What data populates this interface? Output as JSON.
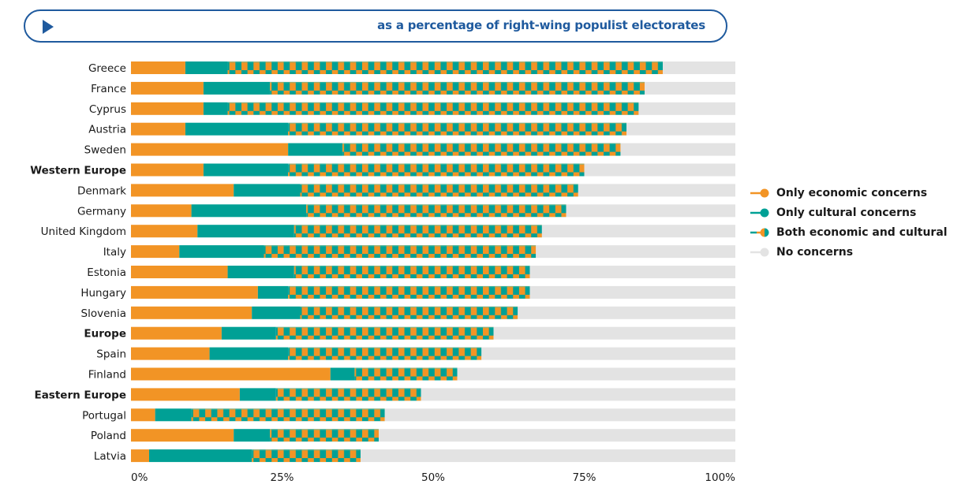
{
  "header": {
    "play_icon": "play-triangle-icon",
    "subtitle": "as a percentage of right-wing populist electorates"
  },
  "colors": {
    "economic": "#f29425",
    "cultural": "#00a095",
    "none": "#e3e3e3",
    "accent": "#1f5a9e"
  },
  "chart_data": {
    "type": "bar",
    "orientation": "horizontal",
    "stacked": true,
    "title": "as a percentage of right-wing populist electorates",
    "xlabel": "",
    "ylabel": "",
    "xlim": [
      0,
      100
    ],
    "x_ticks": [
      "0%",
      "25%",
      "50%",
      "75%",
      "100%"
    ],
    "x_tick_values": [
      0,
      25,
      50,
      75,
      100
    ],
    "grid": false,
    "legend_position": "right",
    "categories": [
      "Greece",
      "France",
      "Cyprus",
      "Austria",
      "Sweden",
      "Western Europe",
      "Denmark",
      "Germany",
      "United Kingdom",
      "Italy",
      "Estonia",
      "Hungary",
      "Slovenia",
      "Europe",
      "Spain",
      "Finland",
      "Eastern Europe",
      "Portugal",
      "Poland",
      "Latvia"
    ],
    "bold_categories": [
      "Western Europe",
      "Europe",
      "Eastern Europe"
    ],
    "series": [
      {
        "name": "Only economic concerns",
        "key": "economic",
        "values": [
          9,
          12,
          12,
          9,
          26,
          12,
          17,
          10,
          11,
          8,
          16,
          21,
          20,
          15,
          13,
          33,
          18,
          4,
          17,
          3
        ]
      },
      {
        "name": "Only cultural concerns",
        "key": "cultural",
        "values": [
          7,
          11,
          4,
          17,
          9,
          14,
          11,
          19,
          16,
          14,
          11,
          5,
          8,
          9,
          13,
          4,
          6,
          6,
          6,
          17
        ]
      },
      {
        "name": "Both economic and cultural",
        "key": "both",
        "values": [
          72,
          62,
          68,
          56,
          46,
          49,
          46,
          43,
          41,
          45,
          39,
          40,
          36,
          36,
          32,
          17,
          24,
          32,
          18,
          18
        ]
      },
      {
        "name": "No concerns",
        "key": "none",
        "values": [
          12,
          15,
          16,
          18,
          19,
          25,
          26,
          28,
          32,
          33,
          34,
          34,
          36,
          40,
          42,
          46,
          52,
          58,
          59,
          62
        ]
      }
    ]
  },
  "legend": [
    {
      "label": "Only economic concerns",
      "key": "economic"
    },
    {
      "label": "Only cultural concerns",
      "key": "cultural"
    },
    {
      "label": "Both economic and cultural",
      "key": "both"
    },
    {
      "label": "No concerns",
      "key": "none"
    }
  ]
}
